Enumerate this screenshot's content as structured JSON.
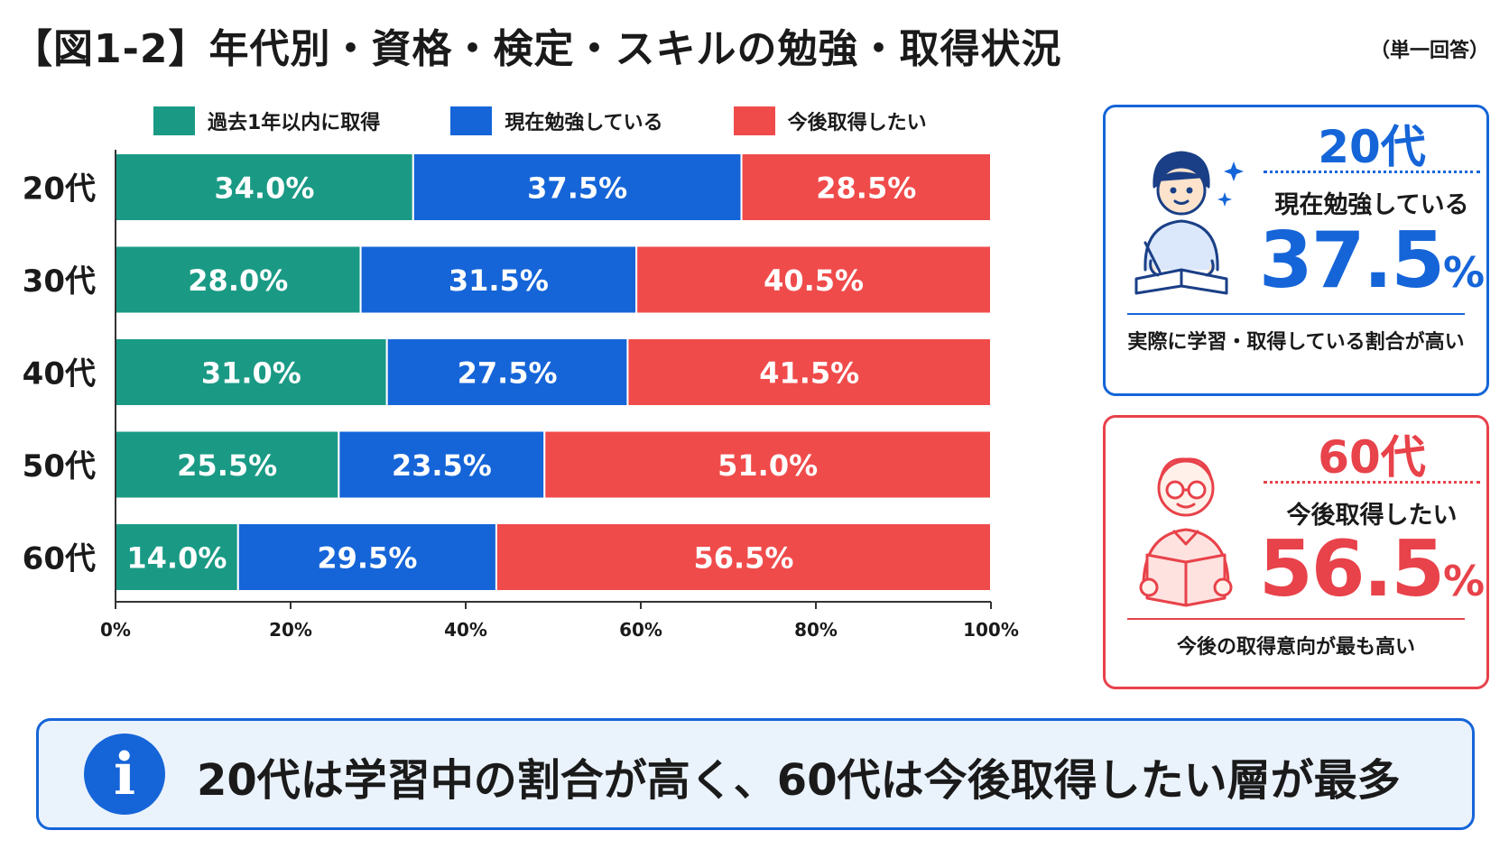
{
  "header": {
    "title": "【図1-2】年代別・資格・検定・スキルの勉強・取得状況",
    "note": "（単一回答）"
  },
  "colors": {
    "green": "#1a9a85",
    "blue": "#1565d8",
    "red": "#f04b4b"
  },
  "chart_data": {
    "type": "bar",
    "orientation": "horizontal",
    "stacked": true,
    "categories": [
      "20代",
      "30代",
      "40代",
      "50代",
      "60代"
    ],
    "series": [
      {
        "name": "過去1年以内に取得",
        "color": "#1a9a85",
        "values": [
          34.0,
          28.0,
          31.0,
          25.5,
          14.0
        ],
        "labels": [
          "34.0%",
          "28.0%",
          "31.0%",
          "25.5%",
          "14.0%"
        ]
      },
      {
        "name": "現在勉強している",
        "color": "#1565d8",
        "values": [
          37.5,
          31.5,
          27.5,
          23.5,
          29.5
        ],
        "labels": [
          "37.5%",
          "31.5%",
          "27.5%",
          "23.5%",
          "29.5%"
        ]
      },
      {
        "name": "今後取得したい",
        "color": "#f04b4b",
        "values": [
          28.5,
          40.5,
          41.5,
          51.0,
          56.5
        ],
        "labels": [
          "28.5%",
          "40.5%",
          "41.5%",
          "51.0%",
          "56.5%"
        ]
      }
    ],
    "xlim": [
      0,
      100
    ],
    "xticks": [
      "0%",
      "20%",
      "40%",
      "60%",
      "80%",
      "100%"
    ],
    "legend": "top"
  },
  "cards": [
    {
      "age": "20代",
      "label": "現在勉強している",
      "value": "37.5",
      "unit": "%",
      "caption": "実際に学習・取得している割合が高い"
    },
    {
      "age": "60代",
      "label": "今後取得したい",
      "value": "56.5",
      "unit": "%",
      "caption": "今後の取得意向が最も高い"
    }
  ],
  "summary": {
    "icon": "info-icon",
    "icon_glyph": "i",
    "text": "20代は学習中の割合が高く、60代は今後取得したい層が最多"
  }
}
